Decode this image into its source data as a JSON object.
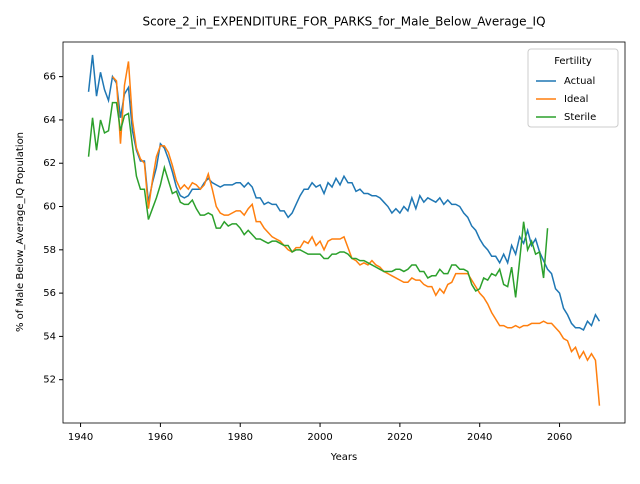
{
  "chart_data": {
    "type": "line",
    "title": "Score_2_in_EXPENDITURE_FOR_PARKS_for_Male_Below_Average_IQ",
    "xlabel": "Years",
    "ylabel": "% of Male Below_Average_IQ Population",
    "legend_title": "Fertility",
    "legend_loc": "upper right",
    "x": [
      1942,
      1943,
      1944,
      1945,
      1946,
      1947,
      1948,
      1949,
      1950,
      1951,
      1952,
      1953,
      1954,
      1955,
      1956,
      1957,
      1958,
      1959,
      1960,
      1961,
      1962,
      1963,
      1964,
      1965,
      1966,
      1967,
      1968,
      1969,
      1970,
      1971,
      1972,
      1973,
      1974,
      1975,
      1976,
      1977,
      1978,
      1979,
      1980,
      1981,
      1982,
      1983,
      1984,
      1985,
      1986,
      1987,
      1988,
      1989,
      1990,
      1991,
      1992,
      1993,
      1994,
      1995,
      1996,
      1997,
      1998,
      1999,
      2000,
      2001,
      2002,
      2003,
      2004,
      2005,
      2006,
      2007,
      2008,
      2009,
      2010,
      2011,
      2012,
      2013,
      2014,
      2015,
      2016,
      2017,
      2018,
      2019,
      2020,
      2021,
      2022,
      2023,
      2024,
      2025,
      2026,
      2027,
      2028,
      2029,
      2030,
      2031,
      2032,
      2033,
      2034,
      2035,
      2036,
      2037,
      2038,
      2039,
      2040,
      2041,
      2042,
      2043,
      2044,
      2045,
      2046,
      2047,
      2048,
      2049,
      2050,
      2051,
      2052,
      2053,
      2054,
      2055,
      2056,
      2057,
      2058,
      2059,
      2060,
      2061,
      2062,
      2063,
      2064,
      2065,
      2066,
      2067,
      2068,
      2069,
      2070
    ],
    "series": [
      {
        "name": "Actual",
        "color": "#1f77b4",
        "values": [
          65.3,
          67.0,
          65.1,
          66.2,
          65.4,
          64.9,
          66.0,
          65.7,
          64.1,
          65.2,
          65.5,
          63.5,
          62.6,
          62.1,
          62.1,
          60.2,
          61.1,
          61.8,
          62.9,
          62.7,
          62.2,
          61.6,
          60.9,
          60.5,
          60.4,
          60.5,
          60.8,
          60.8,
          60.8,
          61.1,
          61.3,
          61.1,
          61.0,
          60.9,
          61.0,
          61.0,
          61.0,
          61.1,
          61.1,
          60.9,
          61.1,
          60.9,
          60.4,
          60.4,
          60.1,
          60.2,
          60.1,
          60.1,
          59.8,
          59.8,
          59.5,
          59.7,
          60.1,
          60.5,
          60.8,
          60.8,
          61.1,
          60.9,
          61.0,
          60.6,
          61.1,
          60.9,
          61.3,
          61.0,
          61.4,
          61.1,
          61.1,
          60.7,
          60.8,
          60.6,
          60.6,
          60.5,
          60.5,
          60.4,
          60.2,
          60.0,
          59.7,
          59.9,
          59.7,
          60.0,
          59.8,
          60.4,
          59.9,
          60.5,
          60.2,
          60.4,
          60.3,
          60.2,
          60.4,
          60.1,
          60.3,
          60.1,
          60.1,
          60.0,
          59.7,
          59.5,
          59.1,
          58.9,
          58.5,
          58.2,
          58.0,
          57.7,
          57.7,
          57.4,
          57.8,
          57.4,
          58.2,
          57.8,
          58.6,
          58.3,
          58.9,
          58.2,
          58.5,
          57.9,
          57.5,
          57.1,
          56.9,
          56.2,
          56.0,
          55.3,
          55.0,
          54.6,
          54.4,
          54.4,
          54.3,
          54.7,
          54.5,
          55.0,
          54.7
        ]
      },
      {
        "name": "Ideal",
        "color": "#ff7f0e",
        "values": [
          null,
          null,
          null,
          null,
          null,
          null,
          66.0,
          65.8,
          62.9,
          65.6,
          66.7,
          64.0,
          62.7,
          62.2,
          62.0,
          59.9,
          61.2,
          62.3,
          62.8,
          62.8,
          62.5,
          61.9,
          61.2,
          60.8,
          61.0,
          60.8,
          61.1,
          61.0,
          60.8,
          61.0,
          61.5,
          60.8,
          60.0,
          59.7,
          59.6,
          59.6,
          59.7,
          59.8,
          59.8,
          59.6,
          59.9,
          60.1,
          59.3,
          59.3,
          59.0,
          58.8,
          58.6,
          58.5,
          58.4,
          58.2,
          58.0,
          57.9,
          58.1,
          58.1,
          58.4,
          58.3,
          58.6,
          58.2,
          58.4,
          58.0,
          58.4,
          58.5,
          58.5,
          58.5,
          58.6,
          58.1,
          57.6,
          57.5,
          57.3,
          57.4,
          57.3,
          57.5,
          57.3,
          57.2,
          57.0,
          56.9,
          56.8,
          56.7,
          56.6,
          56.5,
          56.5,
          56.7,
          56.6,
          56.6,
          56.4,
          56.3,
          56.3,
          55.9,
          56.2,
          56.0,
          56.4,
          56.5,
          56.9,
          56.9,
          56.9,
          56.9,
          56.6,
          56.3,
          56.0,
          55.8,
          55.5,
          55.1,
          54.8,
          54.5,
          54.5,
          54.4,
          54.4,
          54.5,
          54.4,
          54.5,
          54.5,
          54.6,
          54.6,
          54.6,
          54.7,
          54.6,
          54.6,
          54.4,
          54.2,
          53.9,
          53.8,
          53.3,
          53.5,
          53.0,
          53.3,
          52.9,
          53.2,
          52.9,
          50.8
        ]
      },
      {
        "name": "Sterile",
        "color": "#2ca02c",
        "values": [
          62.3,
          64.1,
          62.6,
          64.0,
          63.4,
          63.5,
          64.8,
          64.8,
          63.5,
          64.2,
          64.3,
          62.8,
          61.4,
          60.8,
          60.8,
          59.4,
          59.9,
          60.4,
          61.0,
          61.8,
          61.2,
          60.6,
          60.7,
          60.2,
          60.1,
          60.1,
          60.3,
          59.9,
          59.6,
          59.6,
          59.7,
          59.6,
          59.0,
          59.0,
          59.3,
          59.1,
          59.2,
          59.2,
          59.0,
          58.7,
          58.9,
          58.7,
          58.5,
          58.5,
          58.4,
          58.3,
          58.4,
          58.4,
          58.3,
          58.2,
          58.2,
          57.9,
          58.0,
          58.0,
          57.9,
          57.8,
          57.8,
          57.8,
          57.8,
          57.6,
          57.6,
          57.8,
          57.8,
          57.9,
          57.9,
          57.8,
          57.6,
          57.6,
          57.5,
          57.5,
          57.4,
          57.3,
          57.2,
          57.1,
          57.0,
          57.0,
          57.0,
          57.1,
          57.1,
          57.0,
          57.1,
          57.3,
          57.3,
          57.0,
          57.0,
          56.7,
          56.8,
          56.8,
          57.1,
          56.9,
          56.9,
          57.3,
          57.3,
          57.1,
          57.1,
          57.0,
          56.4,
          56.1,
          56.2,
          56.7,
          56.6,
          56.9,
          56.8,
          57.1,
          56.4,
          56.3,
          57.2,
          55.8,
          57.5,
          59.3,
          58.0,
          58.4,
          57.8,
          57.9,
          56.7,
          59.0,
          null,
          null,
          null,
          null,
          null,
          null,
          null,
          null,
          null,
          null,
          null,
          null,
          null
        ]
      }
    ],
    "xlim": [
      1935.6,
      2076.4
    ],
    "ylim": [
      50.0,
      67.6
    ],
    "xticks": [
      1940,
      1960,
      1980,
      2000,
      2020,
      2040,
      2060
    ],
    "yticks": [
      52,
      54,
      56,
      58,
      60,
      62,
      64,
      66
    ]
  }
}
